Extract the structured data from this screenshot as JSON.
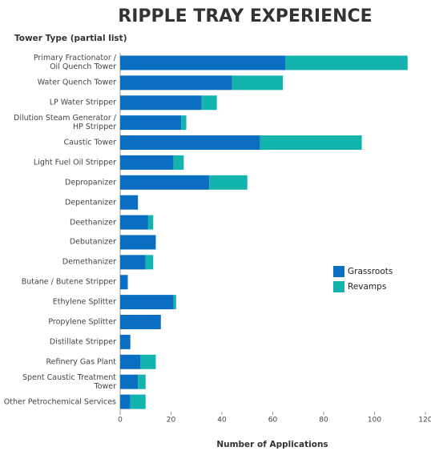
{
  "chart_data": {
    "type": "stacked_bar_horizontal",
    "title": "RIPPLE  TRAY EXPERIENCE",
    "y_label": "Tower Type (partial list)",
    "x_label": "Number of Applications",
    "categories": [
      "Primary Fractionator /\nOil Quench Tower",
      "Water Quench Tower",
      "LP Water Stripper",
      "Dilution Steam Generator /\nHP Stripper",
      "Caustic Tower",
      "Light Fuel Oil Stripper",
      "Depropanizer",
      "Depentanizer",
      "Deethanizer",
      "Debutanizer",
      "Demethanizer",
      "Butane / Butene Stripper",
      "Ethylene Splitter",
      "Propylene Splitter",
      "Distillate Stripper",
      "Refinery Gas Plant",
      "Spent Caustic Treatment Tower",
      "Other Petrochemical Services"
    ],
    "series": [
      {
        "name": "Grassroots",
        "color": "#0a6fc2",
        "values": [
          65,
          44,
          32,
          24,
          55,
          21,
          35,
          7,
          11,
          14,
          10,
          3,
          21,
          16,
          4,
          8,
          7,
          4
        ]
      },
      {
        "name": "Revamps",
        "color": "#14b4ae",
        "values": [
          48,
          20,
          6,
          2,
          40,
          4,
          15,
          0,
          2,
          0,
          3,
          0,
          1,
          0,
          0,
          6,
          3,
          6
        ]
      }
    ],
    "xlim": [
      0,
      120
    ],
    "xticks": [
      0,
      20,
      40,
      60,
      80,
      100,
      120
    ],
    "legend": "right"
  }
}
